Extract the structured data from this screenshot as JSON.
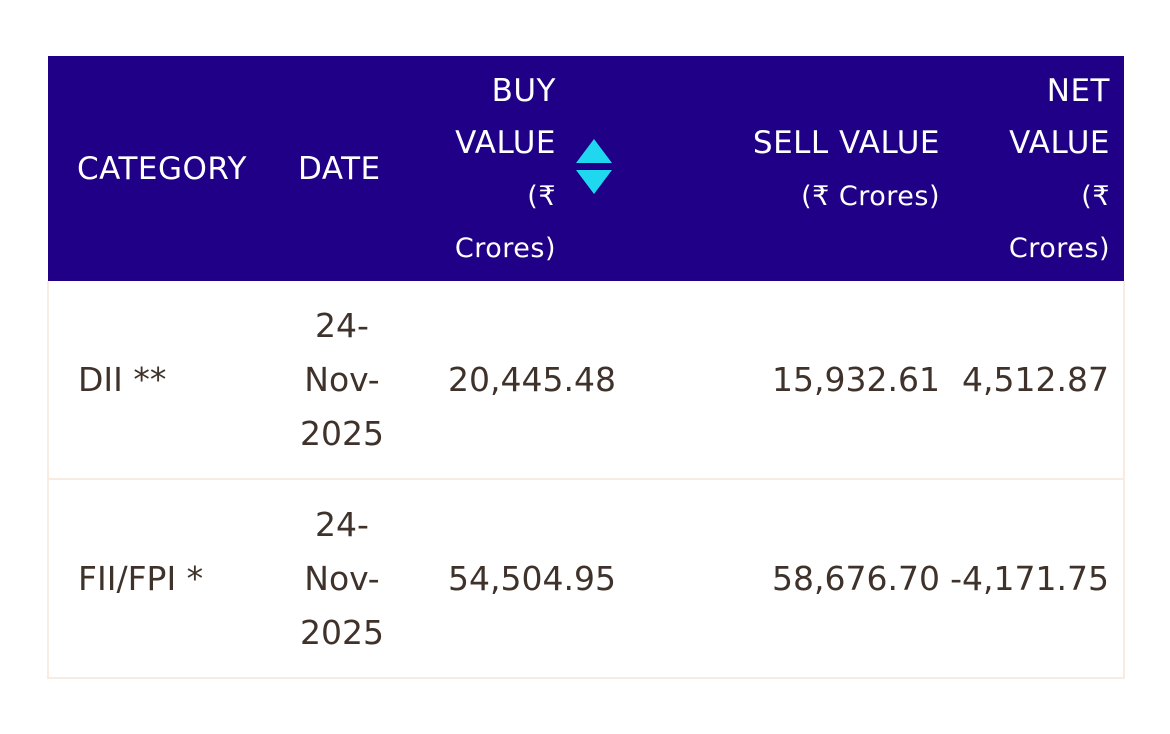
{
  "table": {
    "headers": {
      "category": "CATEGORY",
      "date": "DATE",
      "buy_line1": "BUY",
      "buy_line2": "VALUE",
      "buy_line3": "(₹",
      "buy_line4": "Crores)",
      "sell_line1": "SELL VALUE",
      "sell_line2": "(₹ Crores)",
      "net_line1": "NET",
      "net_line2": "VALUE",
      "net_line3": "(₹",
      "net_line4": "Crores)"
    },
    "rows": [
      {
        "category": "DII **",
        "date_line1": "24-",
        "date_line2": "Nov-",
        "date_line3": "2025",
        "buy": "20,445.48",
        "sell": "15,932.61",
        "net": "4,512.87"
      },
      {
        "category": "FII/FPI *",
        "date_line1": "24-",
        "date_line2": "Nov-",
        "date_line3": "2025",
        "buy": "54,504.95",
        "sell": "58,676.70",
        "net": "-4,171.75"
      }
    ]
  },
  "colors": {
    "header_bg": "#1f0087",
    "sort_icon": "#1fd7ee",
    "text": "#3f322b"
  },
  "icons": {
    "sort": "sort-up-down-icon"
  }
}
